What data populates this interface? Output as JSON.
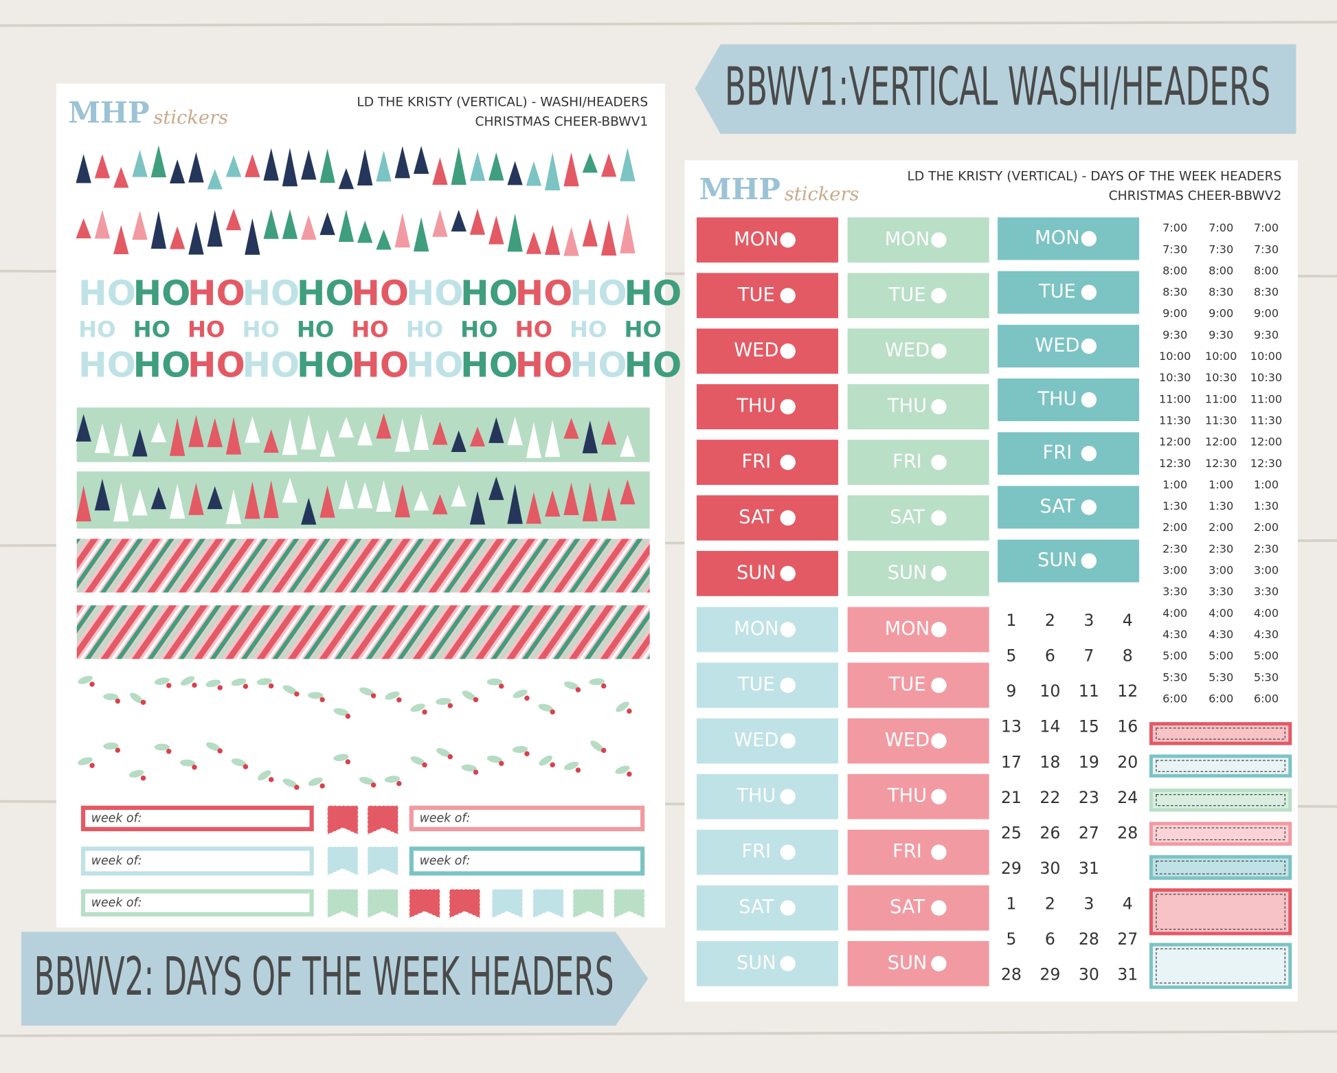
{
  "banners": [
    "BBWV1:VERTICAL WASHI/HEADERS",
    "BBWV2: DAYS OF THE WEEK HEADERS"
  ],
  "logo": {
    "brand": "MHP",
    "script": "stickers"
  },
  "sheet1": {
    "title": "LD THE KRISTY (VERTICAL) - WASHI/HEADERS",
    "subtitle": "CHRISTMAS CHEER-BBWV1",
    "washi_text": "HO",
    "header_label": "week of:"
  },
  "sheet2": {
    "title": "LD THE KRISTY (VERTICAL) - DAYS OF THE WEEK HEADERS",
    "subtitle": "CHRISTMAS CHEER-BBWV2",
    "days": [
      "MON",
      "TUE",
      "WED",
      "THU",
      "FRI",
      "SAT",
      "SUN"
    ],
    "times": [
      "7:00",
      "7:30",
      "8:00",
      "8:30",
      "9:00",
      "9:30",
      "10:00",
      "10:30",
      "11:00",
      "11:30",
      "12:00",
      "12:30",
      "1:00",
      "1:30",
      "2:00",
      "2:30",
      "3:00",
      "3:30",
      "4:00",
      "4:30",
      "5:00",
      "5:30",
      "6:00"
    ],
    "dates": [
      1,
      2,
      3,
      4,
      5,
      6,
      7,
      8,
      9,
      10,
      11,
      12,
      13,
      14,
      15,
      16,
      17,
      18,
      19,
      20,
      21,
      22,
      23,
      24,
      25,
      26,
      27,
      28,
      29,
      30,
      31,
      1,
      2,
      3,
      4,
      5,
      6,
      28,
      27,
      28,
      29,
      30,
      31
    ]
  }
}
